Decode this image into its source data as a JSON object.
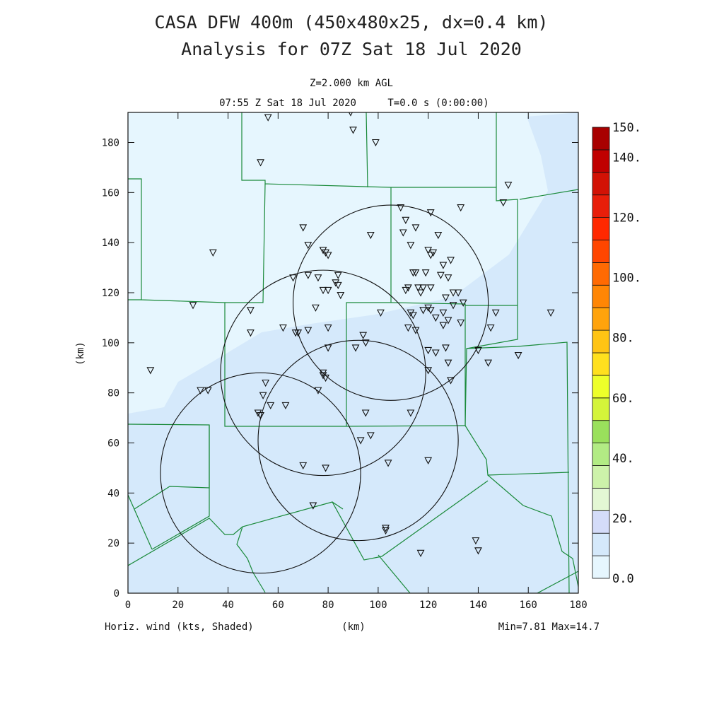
{
  "header": {
    "title_line1": "CASA DFW 400m (450x480x25, dx=0.4 km)",
    "title_line2": "Analysis for 07Z Sat 18 Jul 2020",
    "level": "Z=2.000 km AGL",
    "time": "07:55 Z Sat 18 Jul 2020",
    "time_step": "T=0.0 s (0:00:00)"
  },
  "footer": {
    "variable": "Horiz. wind (kts, Shaded)",
    "xunit": "(km)",
    "minmax": "Min=7.81 Max=14.7"
  },
  "chart_data": {
    "type": "heatmap",
    "xlabel": "(km)",
    "ylabel": "(km)",
    "xlim": [
      0,
      180
    ],
    "ylim": [
      0,
      192
    ],
    "xticks": [
      "0",
      "20",
      "40",
      "60",
      "80",
      "100",
      "120",
      "140",
      "160",
      "180"
    ],
    "yticks": [
      "0",
      "20",
      "40",
      "60",
      "80",
      "100",
      "120",
      "140",
      "160",
      "180"
    ],
    "shading": {
      "variable": "Horizontal wind speed (kts)",
      "regions": [
        {
          "range": "0-10",
          "color": "#e6f6fe"
        },
        {
          "range": "10-20",
          "color": "#d5e9fb"
        }
      ]
    },
    "colorbar": {
      "labels": [
        "150.",
        "140.",
        "120.",
        "100.",
        "80.",
        "60.",
        "40.",
        "20.",
        "0.0"
      ],
      "colors": [
        "#e6f6fe",
        "#d5e9fb",
        "#d4dcf9",
        "#e3f7d4",
        "#cdf2aa",
        "#b2eb84",
        "#9ae05c",
        "#d4f43a",
        "#eeff2a",
        "#ffe01e",
        "#ffc414",
        "#ffa30c",
        "#ff8605",
        "#ff6a02",
        "#ff4600",
        "#ff2800",
        "#e81e0a",
        "#d21205",
        "#c00000",
        "#a80000"
      ]
    },
    "radar_rings": [
      {
        "center": [
          105,
          116
        ],
        "radius": 39
      },
      {
        "center": [
          78,
          88
        ],
        "radius": 41
      },
      {
        "center": [
          92,
          61
        ],
        "radius": 40
      },
      {
        "center": [
          53,
          48
        ],
        "radius": 40
      }
    ],
    "stations": [
      [
        56,
        190
      ],
      [
        89,
        192
      ],
      [
        90,
        185
      ],
      [
        99,
        180
      ],
      [
        53,
        172
      ],
      [
        152,
        163
      ],
      [
        150,
        156
      ],
      [
        109,
        154
      ],
      [
        121,
        152
      ],
      [
        133,
        154
      ],
      [
        111,
        149
      ],
      [
        110,
        144
      ],
      [
        115,
        146
      ],
      [
        70,
        146
      ],
      [
        97,
        143
      ],
      [
        124,
        143
      ],
      [
        72,
        139
      ],
      [
        113,
        139
      ],
      [
        78,
        137
      ],
      [
        79,
        136
      ],
      [
        80,
        135
      ],
      [
        120,
        137
      ],
      [
        121,
        135
      ],
      [
        122,
        136
      ],
      [
        34,
        136
      ],
      [
        115,
        128
      ],
      [
        114,
        128
      ],
      [
        119,
        128
      ],
      [
        126,
        131
      ],
      [
        129,
        133
      ],
      [
        125,
        127
      ],
      [
        128,
        126
      ],
      [
        72,
        127
      ],
      [
        76,
        126
      ],
      [
        84,
        127
      ],
      [
        66,
        126
      ],
      [
        83,
        124
      ],
      [
        84,
        123
      ],
      [
        78,
        121
      ],
      [
        80,
        121
      ],
      [
        85,
        119
      ],
      [
        75,
        114
      ],
      [
        116,
        122
      ],
      [
        117,
        120
      ],
      [
        118,
        122
      ],
      [
        111,
        121
      ],
      [
        112,
        122
      ],
      [
        121,
        122
      ],
      [
        127,
        118
      ],
      [
        130,
        120
      ],
      [
        132,
        120
      ],
      [
        126,
        112
      ],
      [
        123,
        110
      ],
      [
        128,
        109
      ],
      [
        134,
        116
      ],
      [
        130,
        115
      ],
      [
        126,
        107
      ],
      [
        133,
        108
      ],
      [
        101,
        112
      ],
      [
        114,
        111
      ],
      [
        113,
        112
      ],
      [
        118,
        113
      ],
      [
        120,
        114
      ],
      [
        121,
        113
      ],
      [
        26,
        115
      ],
      [
        49,
        113
      ],
      [
        147,
        112
      ],
      [
        169,
        112
      ],
      [
        62,
        106
      ],
      [
        67,
        104
      ],
      [
        68,
        104
      ],
      [
        72,
        105
      ],
      [
        80,
        106
      ],
      [
        49,
        104
      ],
      [
        115,
        105
      ],
      [
        112,
        106
      ],
      [
        145,
        106
      ],
      [
        94,
        103
      ],
      [
        95,
        100
      ],
      [
        80,
        98
      ],
      [
        91,
        98
      ],
      [
        140,
        97
      ],
      [
        120,
        97
      ],
      [
        123,
        96
      ],
      [
        127,
        98
      ],
      [
        156,
        95
      ],
      [
        144,
        92
      ],
      [
        128,
        92
      ],
      [
        9,
        89
      ],
      [
        120,
        89
      ],
      [
        78,
        88
      ],
      [
        79,
        86
      ],
      [
        78,
        87
      ],
      [
        129,
        85
      ],
      [
        55,
        84
      ],
      [
        29,
        81
      ],
      [
        32,
        81
      ],
      [
        76,
        81
      ],
      [
        54,
        79
      ],
      [
        57,
        75
      ],
      [
        63,
        75
      ],
      [
        52,
        72
      ],
      [
        53,
        71
      ],
      [
        95,
        72
      ],
      [
        113,
        72
      ],
      [
        97,
        63
      ],
      [
        93,
        61
      ],
      [
        120,
        53
      ],
      [
        104,
        52
      ],
      [
        70,
        51
      ],
      [
        79,
        50
      ],
      [
        74,
        35
      ],
      [
        103,
        26
      ],
      [
        103,
        25
      ],
      [
        139,
        21
      ],
      [
        140,
        17
      ],
      [
        117,
        16
      ]
    ]
  }
}
